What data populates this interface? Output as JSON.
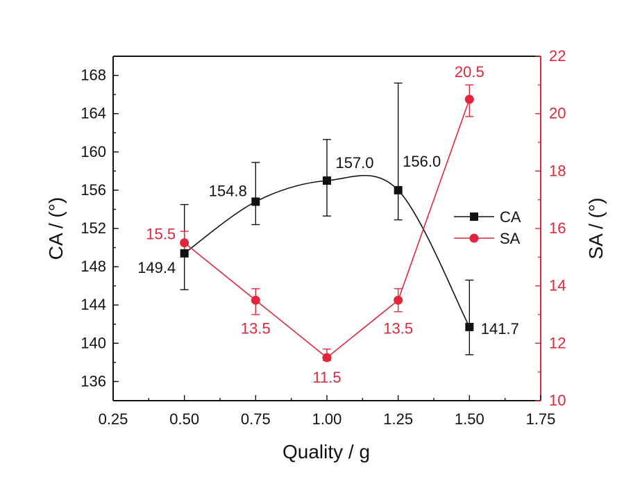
{
  "chart_data": {
    "type": "line",
    "xlabel": "Quality / g",
    "ylabel_left": "CA / (°)",
    "ylabel_right": "SA / (°)",
    "x": [
      0.5,
      0.75,
      1.0,
      1.25,
      1.5
    ],
    "xlim": [
      0.25,
      1.75
    ],
    "ylim_left": [
      134,
      170
    ],
    "ylim_right": [
      10,
      22
    ],
    "xticks": [
      "0.25",
      "0.50",
      "0.75",
      "1.00",
      "1.25",
      "1.50",
      "1.75"
    ],
    "yticks_left": [
      "136",
      "140",
      "144",
      "148",
      "152",
      "156",
      "160",
      "164",
      "168"
    ],
    "yticks_right": [
      "10",
      "12",
      "14",
      "16",
      "18",
      "20",
      "22"
    ],
    "legend_position": "right",
    "series": [
      {
        "name": "CA",
        "axis": "left",
        "color": "#111111",
        "marker": "square",
        "values": [
          149.4,
          154.8,
          157.0,
          156.0,
          141.7
        ],
        "error_low": [
          145.6,
          152.4,
          153.3,
          152.9,
          138.8
        ],
        "error_high": [
          154.5,
          158.9,
          161.3,
          167.2,
          146.6
        ],
        "labels": [
          "149.4",
          "154.8",
          "157.0",
          "156.0",
          "141.7"
        ]
      },
      {
        "name": "SA",
        "axis": "right",
        "color": "#e0263a",
        "marker": "circle",
        "values": [
          15.5,
          13.5,
          11.5,
          13.5,
          20.5
        ],
        "error_low": [
          15.1,
          13.0,
          11.4,
          13.1,
          19.9
        ],
        "error_high": [
          15.9,
          13.9,
          11.8,
          13.9,
          21.0
        ],
        "labels": [
          "15.5",
          "13.5",
          "11.5",
          "13.5",
          "20.5"
        ]
      }
    ]
  }
}
